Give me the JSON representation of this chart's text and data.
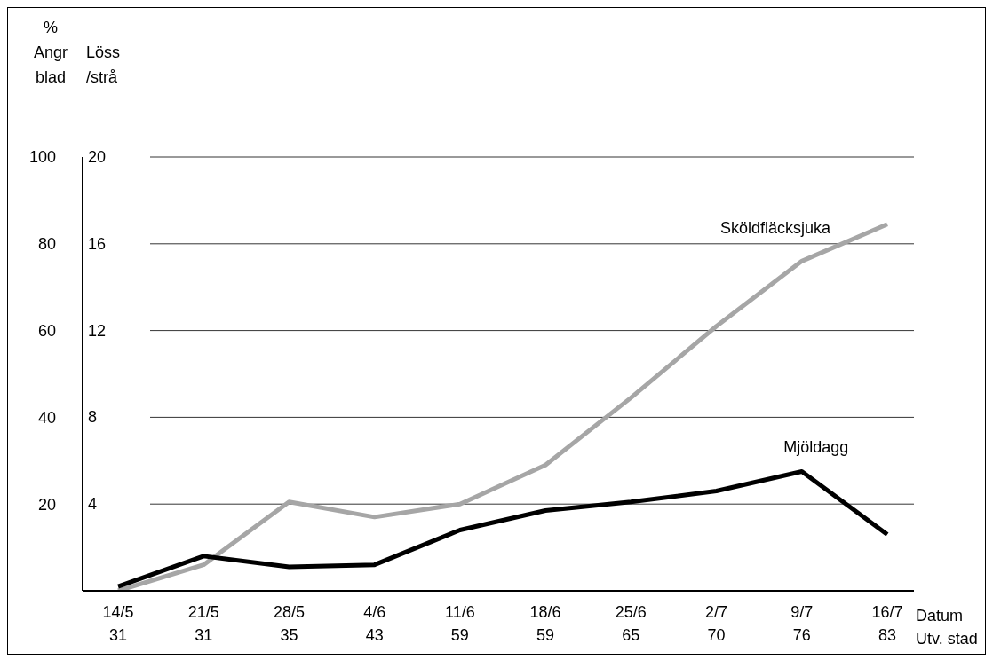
{
  "chart_data": {
    "type": "line",
    "categories": [
      "14/5\n31",
      "21/5\n31",
      "28/5\n35",
      "4/6\n43",
      "11/6\n59",
      "18/6\n59",
      "25/6\n65",
      "2/7\n70",
      "9/7\n76",
      "16/7\n83"
    ],
    "xlabel": "Datum\nUtv. stad",
    "ylabel": "%\nAngr\nblad",
    "y2label": "Löss\n/strå",
    "series": [
      {
        "name": "Sköldfläcksjuka",
        "color": "#a6a6a6",
        "values": [
          0,
          6,
          20.5,
          17,
          20,
          29,
          44.5,
          61,
          76,
          84.5
        ]
      },
      {
        "name": "Mjöldagg",
        "color": "#000000",
        "values": [
          1,
          8,
          5.5,
          6,
          14,
          18.5,
          20.5,
          23,
          27.5,
          13
        ]
      }
    ],
    "ylim": [
      0,
      100
    ],
    "yticks": [
      20,
      40,
      60,
      80,
      100
    ],
    "y2lim": [
      0,
      20
    ],
    "y2ticks": [
      4,
      8,
      12,
      16,
      20
    ],
    "grid": "y",
    "legend": false,
    "marker": "none",
    "line_style": "solid"
  }
}
